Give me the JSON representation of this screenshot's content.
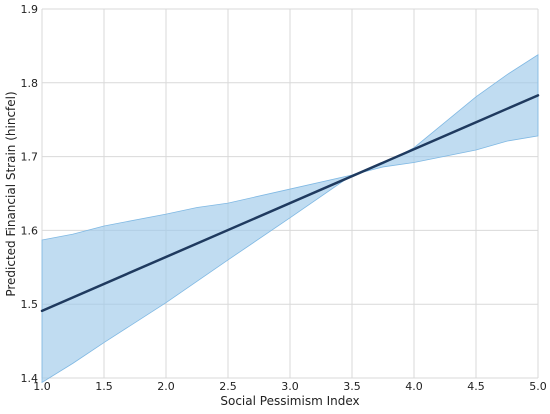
{
  "chart_data": {
    "type": "line",
    "title": "",
    "xlabel": "Social Pessimism Index",
    "ylabel": "Predicted Financial Strain (hincfel)",
    "xlim": [
      1.0,
      5.0
    ],
    "ylim": [
      1.4,
      1.9
    ],
    "x_ticks": [
      "1.0",
      "1.5",
      "2.0",
      "2.5",
      "3.0",
      "3.5",
      "4.0",
      "4.5",
      "5.0"
    ],
    "y_ticks": [
      "1.4",
      "1.5",
      "1.6",
      "1.7",
      "1.8",
      "1.9"
    ],
    "grid": true,
    "legend": "none",
    "series": [
      {
        "x": [
          1.0,
          5.0
        ],
        "y": [
          1.491,
          1.783
        ],
        "color": "#1f3a5f"
      }
    ],
    "confidence_band": {
      "color": "#9ecae9",
      "x": [
        1.0,
        1.25,
        1.5,
        2.0,
        2.25,
        2.5,
        3.0,
        3.5,
        3.75,
        4.0,
        4.5,
        4.75,
        5.0
      ],
      "upper": [
        1.587,
        1.595,
        1.606,
        1.622,
        1.631,
        1.637,
        1.656,
        1.675,
        1.69,
        1.712,
        1.781,
        1.811,
        1.838
      ],
      "lower": [
        1.394,
        1.42,
        1.448,
        1.502,
        1.531,
        1.56,
        1.617,
        1.675,
        1.686,
        1.692,
        1.709,
        1.721,
        1.728
      ]
    }
  }
}
